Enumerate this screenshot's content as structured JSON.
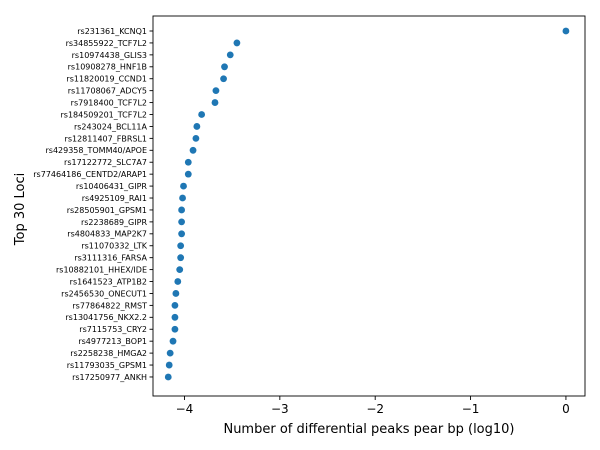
{
  "chart_data": {
    "type": "scatter",
    "title": "",
    "xlabel": "Number of differential peaks pear bp (log10)",
    "ylabel": "Top 30 Loci",
    "xlim": [
      -4.33,
      0.2
    ],
    "xticks": [
      {
        "value": -4,
        "label": "−4"
      },
      {
        "value": -3,
        "label": "−3"
      },
      {
        "value": -2,
        "label": "−2"
      },
      {
        "value": -1,
        "label": "−1"
      },
      {
        "value": 0,
        "label": "0"
      }
    ],
    "grid": false,
    "legend": "none",
    "marker_color": "#1f77b4",
    "points": [
      {
        "label": "rs231361_KCNQ1",
        "x": 0.0
      },
      {
        "label": "rs34855922_TCF7L2",
        "x": -3.45
      },
      {
        "label": "rs10974438_GLIS3",
        "x": -3.52
      },
      {
        "label": "rs10908278_HNF1B",
        "x": -3.58
      },
      {
        "label": "rs11820019_CCND1",
        "x": -3.59
      },
      {
        "label": "rs11708067_ADCY5",
        "x": -3.67
      },
      {
        "label": "rs7918400_TCF7L2",
        "x": -3.68
      },
      {
        "label": "rs184509201_TCF7L2",
        "x": -3.82
      },
      {
        "label": "rs243024_BCL11A",
        "x": -3.87
      },
      {
        "label": "rs12811407_FBRSL1",
        "x": -3.88
      },
      {
        "label": "rs429358_TOMM40/APOE",
        "x": -3.91
      },
      {
        "label": "rs17122772_SLC7A7",
        "x": -3.96
      },
      {
        "label": "rs77464186_CENTD2/ARAP1",
        "x": -3.96
      },
      {
        "label": "rs10406431_GIPR",
        "x": -4.01
      },
      {
        "label": "rs4925109_RAI1",
        "x": -4.02
      },
      {
        "label": "rs28505901_GPSM1",
        "x": -4.03
      },
      {
        "label": "rs2238689_GIPR",
        "x": -4.03
      },
      {
        "label": "rs4804833_MAP2K7",
        "x": -4.03
      },
      {
        "label": "rs11070332_LTK",
        "x": -4.04
      },
      {
        "label": "rs3111316_FARSA",
        "x": -4.04
      },
      {
        "label": "rs10882101_HHEX/IDE",
        "x": -4.05
      },
      {
        "label": "rs1641523_ATP1B2",
        "x": -4.07
      },
      {
        "label": "rs2456530_ONECUT1",
        "x": -4.09
      },
      {
        "label": "rs77864822_RMST",
        "x": -4.1
      },
      {
        "label": "rs13041756_NKX2.2",
        "x": -4.1
      },
      {
        "label": "rs7115753_CRY2",
        "x": -4.1
      },
      {
        "label": "rs4977213_BOP1",
        "x": -4.12
      },
      {
        "label": "rs2258238_HMGA2",
        "x": -4.15
      },
      {
        "label": "rs11793035_GPSM1",
        "x": -4.16
      },
      {
        "label": "rs17250977_ANKH",
        "x": -4.17
      }
    ]
  }
}
